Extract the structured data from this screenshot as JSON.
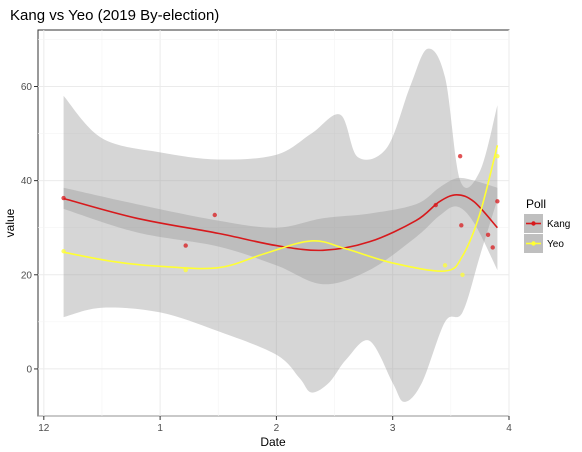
{
  "chart_data": {
    "type": "scatter",
    "title": "Kang vs Yeo (2019 By-election)",
    "xlabel": "Date",
    "ylabel": "value",
    "x_ticks": [
      {
        "value": 0.0,
        "label": "12"
      },
      {
        "value": 1.0,
        "label": "1"
      },
      {
        "value": 2.0,
        "label": "2"
      },
      {
        "value": 3.0,
        "label": "3"
      },
      {
        "value": 4.0,
        "label": "4"
      }
    ],
    "y_ticks": [
      0,
      20,
      40,
      60
    ],
    "xlim": [
      -0.05,
      4.0
    ],
    "ylim": [
      -10,
      72
    ],
    "grid": true,
    "legend": {
      "title": "Poll",
      "placement": "right"
    },
    "series": [
      {
        "name": "Kang",
        "color": "#d7191c",
        "points": [
          [
            0.17,
            36.3
          ],
          [
            1.22,
            26.2
          ],
          [
            1.47,
            32.7
          ],
          [
            3.37,
            34.8
          ],
          [
            3.58,
            45.2
          ],
          [
            3.59,
            30.5
          ],
          [
            3.82,
            28.5
          ],
          [
            3.86,
            25.8
          ],
          [
            3.9,
            35.6
          ]
        ],
        "smooth": [
          [
            0.17,
            36.2
          ],
          [
            0.8,
            32.0
          ],
          [
            1.5,
            28.8
          ],
          [
            2.0,
            26.2
          ],
          [
            2.4,
            25.2
          ],
          [
            2.8,
            27.0
          ],
          [
            3.2,
            31.5
          ],
          [
            3.4,
            35.5
          ],
          [
            3.55,
            37.0
          ],
          [
            3.7,
            35.5
          ],
          [
            3.9,
            30.0
          ]
        ],
        "band_upper": [
          [
            0.17,
            38.5
          ],
          [
            0.8,
            35.0
          ],
          [
            1.5,
            31.5
          ],
          [
            2.0,
            30.0
          ],
          [
            2.4,
            32.0
          ],
          [
            2.8,
            33.0
          ],
          [
            3.2,
            35.0
          ],
          [
            3.4,
            38.5
          ],
          [
            3.55,
            40.5
          ],
          [
            3.7,
            40.0
          ],
          [
            3.9,
            38.5
          ]
        ],
        "band_lower": [
          [
            0.17,
            34.0
          ],
          [
            0.8,
            29.0
          ],
          [
            1.5,
            26.0
          ],
          [
            2.0,
            22.0
          ],
          [
            2.4,
            18.0
          ],
          [
            2.8,
            21.0
          ],
          [
            3.2,
            28.0
          ],
          [
            3.4,
            32.5
          ],
          [
            3.55,
            34.5
          ],
          [
            3.7,
            31.0
          ],
          [
            3.9,
            21.0
          ]
        ]
      },
      {
        "name": "Yeo",
        "color": "#ffff33",
        "points": [
          [
            0.17,
            25.0
          ],
          [
            1.22,
            21.0
          ],
          [
            3.45,
            22.0
          ],
          [
            3.6,
            20.0
          ],
          [
            3.9,
            45.2
          ]
        ],
        "smooth": [
          [
            0.17,
            24.8
          ],
          [
            0.6,
            22.8
          ],
          [
            1.0,
            21.8
          ],
          [
            1.5,
            21.5
          ],
          [
            1.9,
            24.5
          ],
          [
            2.3,
            27.2
          ],
          [
            2.6,
            25.5
          ],
          [
            3.0,
            22.5
          ],
          [
            3.45,
            20.8
          ],
          [
            3.6,
            24.0
          ],
          [
            3.75,
            33.0
          ],
          [
            3.9,
            47.5
          ]
        ],
        "band_upper": [
          [
            0.17,
            58.0
          ],
          [
            0.5,
            49.0
          ],
          [
            1.0,
            46.0
          ],
          [
            1.5,
            44.5
          ],
          [
            2.0,
            45.5
          ],
          [
            2.3,
            50.0
          ],
          [
            2.55,
            54.0
          ],
          [
            2.7,
            45.0
          ],
          [
            2.95,
            47.0
          ],
          [
            3.15,
            60.0
          ],
          [
            3.3,
            68.0
          ],
          [
            3.45,
            62.0
          ],
          [
            3.58,
            40.0
          ],
          [
            3.75,
            42.0
          ],
          [
            3.9,
            56.0
          ]
        ],
        "band_lower": [
          [
            0.17,
            11.0
          ],
          [
            0.5,
            13.0
          ],
          [
            1.0,
            12.0
          ],
          [
            1.5,
            8.0
          ],
          [
            2.0,
            3.0
          ],
          [
            2.2,
            -2.0
          ],
          [
            2.3,
            -5.0
          ],
          [
            2.45,
            -3.0
          ],
          [
            2.6,
            2.0
          ],
          [
            2.8,
            6.0
          ],
          [
            3.0,
            -3.0
          ],
          [
            3.1,
            -7.0
          ],
          [
            3.25,
            -3.0
          ],
          [
            3.45,
            10.0
          ],
          [
            3.6,
            12.0
          ],
          [
            3.75,
            24.0
          ],
          [
            3.9,
            36.0
          ]
        ]
      }
    ]
  }
}
